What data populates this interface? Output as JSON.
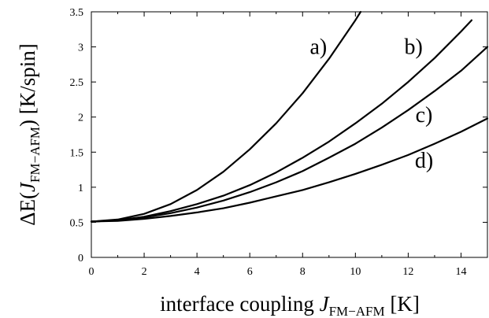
{
  "chart_data": {
    "type": "line",
    "xlim": [
      0,
      15
    ],
    "ylim": [
      0,
      3.5
    ],
    "x_ticks": [
      "0",
      "2",
      "4",
      "6",
      "8",
      "10",
      "12",
      "14"
    ],
    "y_ticks": [
      "0",
      "0.5",
      "1",
      "1.5",
      "2",
      "2.5",
      "3",
      "3.5"
    ],
    "xlabel": {
      "prefix": "interface coupling ",
      "symbol": "J",
      "subscript": "FM−AFM",
      "suffix": " [K]"
    },
    "ylabel": {
      "prefix": "ΔE(",
      "symbol": "J",
      "subscript": "FM−AFM",
      "suffix": ") [K/spin]"
    },
    "grid": false,
    "series": [
      {
        "name": "a)",
        "x": [
          0,
          1,
          2,
          3,
          4,
          5,
          6,
          7,
          8,
          9,
          10,
          10.2
        ],
        "y": [
          0.51,
          0.54,
          0.62,
          0.76,
          0.96,
          1.22,
          1.54,
          1.91,
          2.34,
          2.83,
          3.38,
          3.5
        ]
      },
      {
        "name": "b)",
        "x": [
          0,
          1,
          2,
          3,
          4,
          5,
          6,
          7,
          8,
          9,
          10,
          11,
          12,
          13,
          14,
          14.4
        ],
        "y": [
          0.51,
          0.53,
          0.58,
          0.66,
          0.76,
          0.88,
          1.03,
          1.21,
          1.42,
          1.65,
          1.91,
          2.19,
          2.5,
          2.84,
          3.22,
          3.38
        ]
      },
      {
        "name": "c)",
        "x": [
          0,
          1,
          2,
          3,
          4,
          5,
          6,
          7,
          8,
          9,
          10,
          11,
          12,
          13,
          14,
          15
        ],
        "y": [
          0.51,
          0.53,
          0.57,
          0.63,
          0.71,
          0.81,
          0.93,
          1.07,
          1.23,
          1.42,
          1.62,
          1.85,
          2.1,
          2.37,
          2.66,
          3.0
        ]
      },
      {
        "name": "d)",
        "x": [
          0,
          1,
          2,
          3,
          4,
          5,
          6,
          7,
          8,
          9,
          10,
          11,
          12,
          13,
          14,
          15
        ],
        "y": [
          0.51,
          0.52,
          0.55,
          0.59,
          0.64,
          0.7,
          0.78,
          0.87,
          0.96,
          1.07,
          1.19,
          1.32,
          1.46,
          1.62,
          1.79,
          1.98
        ]
      }
    ],
    "annotations": [
      {
        "text": "a)",
        "x": 8.6,
        "y": 3.0
      },
      {
        "text": "b)",
        "x": 12.2,
        "y": 3.0
      },
      {
        "text": "c)",
        "x": 12.6,
        "y": 2.03
      },
      {
        "text": "d)",
        "x": 12.6,
        "y": 1.38
      }
    ],
    "line_color": "#000000"
  }
}
